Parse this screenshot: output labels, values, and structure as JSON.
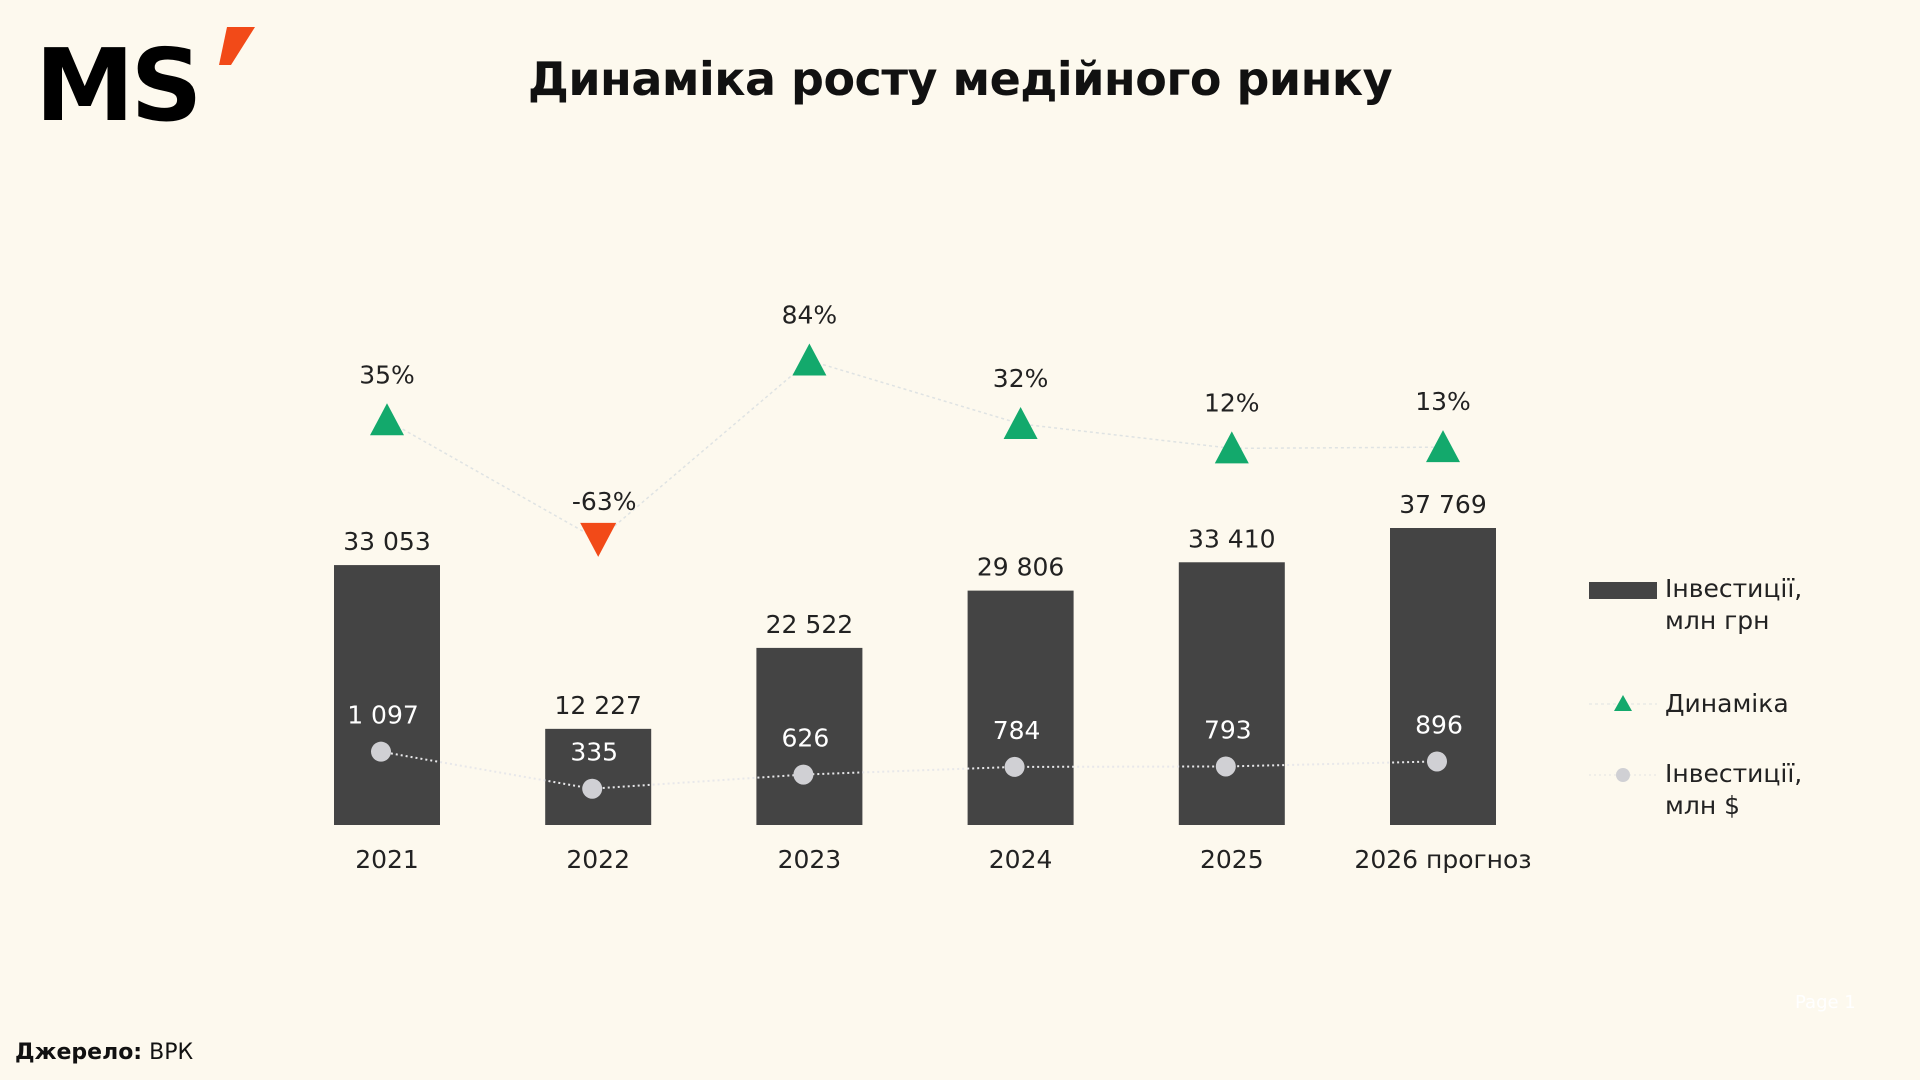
{
  "logo": {
    "text": "MS'"
  },
  "title": "Динаміка росту медійного ринку",
  "colors": {
    "background": "#fdf9ee",
    "bar": "#444444",
    "up": "#13a96c",
    "down": "#f24a18",
    "dot": "#d0d0d4"
  },
  "chart_data": {
    "type": "bar",
    "title": "Динаміка росту медійного ринку",
    "categories": [
      "2021",
      "2022",
      "2023",
      "2024",
      "2025",
      "2026 прогноз"
    ],
    "series": [
      {
        "name": "Інвестиції, млн грн",
        "type": "bar",
        "values": [
          33053,
          12227,
          22522,
          29806,
          33410,
          37769
        ],
        "labels": [
          "33 053",
          "12 227",
          "22 522",
          "29 806",
          "33 410",
          "37 769"
        ]
      },
      {
        "name": "Динаміка",
        "type": "line-markers",
        "values": [
          35,
          -63,
          84,
          32,
          12,
          13
        ],
        "labels": [
          "35%",
          "-63%",
          "84%",
          "32%",
          "12%",
          "13%"
        ]
      },
      {
        "name": "Інвестиції, млн $",
        "type": "line-markers",
        "values": [
          1097,
          335,
          626,
          784,
          793,
          896
        ],
        "labels": [
          "1 097",
          "335",
          "626",
          "784",
          "793",
          "896"
        ]
      }
    ],
    "legend_placement": "right",
    "grid": false
  },
  "legend": [
    {
      "line1": "Інвестиції,",
      "line2": "млн грн"
    },
    {
      "line1": "Динаміка",
      "line2": ""
    },
    {
      "line1": "Інвестиції,",
      "line2": "млн $"
    }
  ],
  "source": {
    "label": "Джерело:",
    "value": "ВРК"
  },
  "page": "Page 1"
}
